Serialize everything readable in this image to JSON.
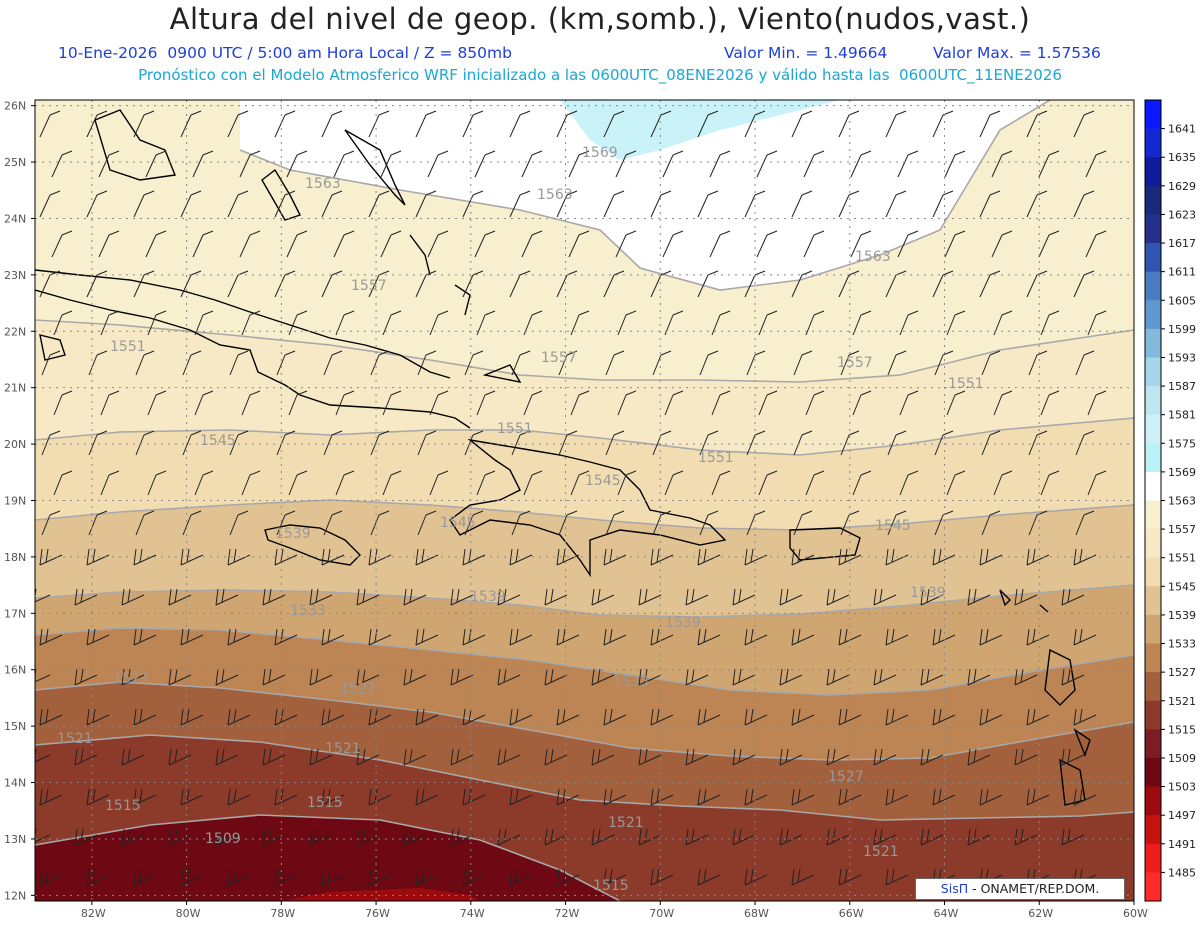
{
  "header": {
    "title": "Altura del nivel de geop. (km,somb.), Viento(nudos,vast.)",
    "date_line": "10-Ene-2026  0900 UTC / 5:00 am Hora Local / Z = 850mb",
    "min_line": "Valor Min. = 1.49664",
    "max_line": "Valor Max. = 1.57536",
    "model_line": "Pronóstico con el Modelo Atmosferico WRF inicializado a las 0600UTC_08ENE2026 y válido hasta las  0600UTC_11ENE2026"
  },
  "credit": {
    "brand": "SisΠ",
    "text": " - ONAMET/REP.DOM."
  },
  "axes": {
    "lat_labels": [
      "12N",
      "13N",
      "14N",
      "15N",
      "16N",
      "17N",
      "18N",
      "19N",
      "20N",
      "21N",
      "22N",
      "23N",
      "24N",
      "25N",
      "26N"
    ],
    "lon_labels": [
      "82W",
      "80W",
      "78W",
      "76W",
      "74W",
      "72W",
      "70W",
      "68W",
      "66W",
      "64W",
      "62W",
      "60W"
    ]
  },
  "colorbar": {
    "levels": [
      "1641",
      "1635",
      "1629",
      "1623",
      "1617",
      "1611",
      "1605",
      "1599",
      "1593",
      "1587",
      "1581",
      "1575",
      "1569",
      "1563",
      "1557",
      "1551",
      "1545",
      "1539",
      "1533",
      "1527",
      "1521",
      "1515",
      "1509",
      "1503",
      "1497",
      "1491",
      "1485"
    ],
    "colors": [
      "#0a19ff",
      "#1428d2",
      "#0e1c9c",
      "#1a2a7a",
      "#24308a",
      "#2f55b0",
      "#4a7cc4",
      "#5f97cf",
      "#83b9dc",
      "#a7d6ea",
      "#bde6f0",
      "#cdf1f6",
      "#b8f1f6",
      "#ffffff",
      "#f8efcf",
      "#f7e8c6",
      "#f1ddb1",
      "#e1c292",
      "#cfa571",
      "#bd8454",
      "#a3603c",
      "#8c3a2a",
      "#7b1d22",
      "#6e0914",
      "#9c0a0e",
      "#c4130f",
      "#ee1d1d",
      "#ff2a2a"
    ]
  },
  "contour_labels": [
    "1569",
    "1563",
    "1563",
    "1563",
    "1557",
    "1557",
    "1557",
    "1551",
    "1551",
    "1551",
    "1551",
    "1545",
    "1545",
    "1545",
    "1545",
    "1539",
    "1539",
    "1539",
    "1539",
    "1533",
    "1533",
    "1527",
    "1527",
    "1527",
    "1521",
    "1521",
    "1521",
    "1521",
    "1515",
    "1515",
    "1515",
    "1509"
  ]
}
